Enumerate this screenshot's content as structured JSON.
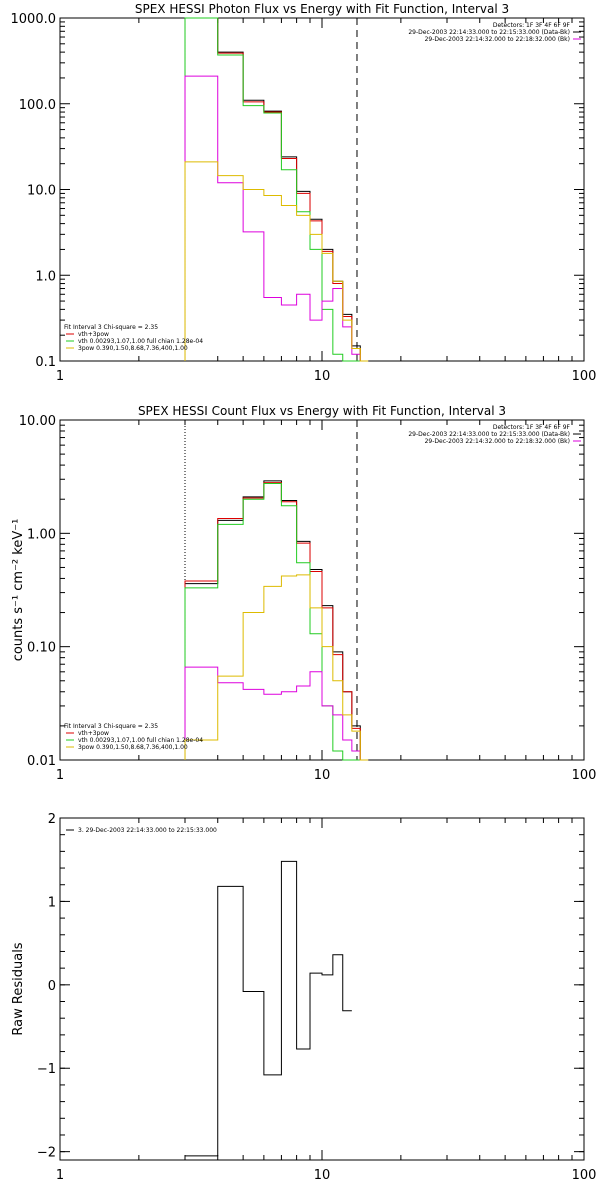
{
  "chart_data": [
    {
      "type": "line",
      "title": "SPEX HESSI Photon Flux vs Energy with Fit Function, Interval 3",
      "xscale": "log",
      "yscale": "log",
      "xlim": [
        1,
        100
      ],
      "ylim": [
        0.1,
        1000
      ],
      "xticks": [
        {
          "v": 1,
          "label": "1"
        },
        {
          "v": 10,
          "label": "10"
        },
        {
          "v": 100,
          "label": "100"
        }
      ],
      "yticks": [
        {
          "v": 1000,
          "label": "1000.0"
        },
        {
          "v": 100,
          "label": "100.0"
        },
        {
          "v": 10,
          "label": "10.0"
        },
        {
          "v": 1,
          "label": "1.0"
        },
        {
          "v": 0.1,
          "label": "0.1"
        }
      ],
      "edges": [
        3.0,
        4.0,
        5.0,
        6.0,
        7.0,
        8.0,
        9.0,
        10.0,
        11.0,
        12.0,
        13.0,
        14.0,
        15.0
      ],
      "vlines": [
        {
          "x": 3.0,
          "style": "dotted",
          "color": "#000000"
        },
        {
          "x": 13.6,
          "style": "dashed",
          "color": "#000000"
        }
      ],
      "series": [
        {
          "color": "#000000",
          "values": [
            1000,
            400,
            110,
            82,
            24,
            9.5,
            4.5,
            2.0,
            0.85,
            0.35,
            0.15,
            0.1
          ]
        },
        {
          "color": "#dd0000",
          "values": [
            1000,
            390,
            105,
            80,
            23,
            9.0,
            4.3,
            1.9,
            0.8,
            0.33,
            0.14,
            0.1
          ]
        },
        {
          "color": "#22cc22",
          "values": [
            1000,
            370,
            95,
            78,
            17,
            5.5,
            2.0,
            0.4,
            0.12,
            0.1,
            0.1,
            0.1
          ]
        },
        {
          "color": "#dd00dd",
          "values": [
            210,
            12,
            3.2,
            0.55,
            0.45,
            0.6,
            0.3,
            0.5,
            0.7,
            0.25,
            0.12,
            0.1
          ]
        },
        {
          "color": "#ddbb00",
          "values": [
            21,
            14.5,
            10.0,
            8.5,
            6.5,
            5.0,
            3.0,
            1.8,
            0.85,
            0.3,
            0.14,
            0.1
          ]
        }
      ],
      "info_lines": [
        {
          "text": "Detectors: 1F 3F 4F 6F 9F",
          "color": ""
        },
        {
          "text": "29-Dec-2003 22:14:33.000 to 22:15:33.000 (Data-Bk)",
          "color": "#000000"
        },
        {
          "text": "29-Dec-2003 22:14:32.000 to 22:18:32.000 (Bk)",
          "color": "#dd00dd"
        }
      ],
      "legend_title": "Fit Interval 3   Chi-square = 2.35",
      "legend": [
        {
          "text": "vth+3pow",
          "color": "#dd0000"
        },
        {
          "text": "vth 0.00293,1.07,1.00  full chian 1.28e-04",
          "color": "#22cc22"
        },
        {
          "text": "3pow 0.390,1.50,8.68,7.36,400,1.00",
          "color": "#ddbb00"
        }
      ]
    },
    {
      "type": "line",
      "title": "SPEX HESSI Count Flux vs Energy with Fit Function, Interval 3",
      "ylabel": "counts s⁻¹ cm⁻² keV⁻¹",
      "xscale": "log",
      "yscale": "log",
      "xlim": [
        1,
        100
      ],
      "ylim": [
        0.01,
        10
      ],
      "xticks": [
        {
          "v": 1,
          "label": "1"
        },
        {
          "v": 10,
          "label": "10"
        },
        {
          "v": 100,
          "label": "100"
        }
      ],
      "yticks": [
        {
          "v": 10,
          "label": "10.00"
        },
        {
          "v": 1,
          "label": "1.00"
        },
        {
          "v": 0.1,
          "label": "0.10"
        },
        {
          "v": 0.01,
          "label": "0.01"
        }
      ],
      "edges": [
        3.0,
        4.0,
        5.0,
        6.0,
        7.0,
        8.0,
        9.0,
        10.0,
        11.0,
        12.0,
        13.0,
        14.0,
        15.0
      ],
      "vlines": [
        {
          "x": 3.0,
          "style": "dotted",
          "color": "#000000"
        },
        {
          "x": 13.6,
          "style": "dashed",
          "color": "#000000"
        }
      ],
      "series": [
        {
          "color": "#000000",
          "values": [
            0.36,
            1.3,
            2.1,
            2.9,
            1.95,
            0.85,
            0.48,
            0.23,
            0.09,
            0.04,
            0.02,
            0.01
          ]
        },
        {
          "color": "#dd0000",
          "values": [
            0.38,
            1.35,
            2.05,
            2.8,
            1.9,
            0.82,
            0.46,
            0.22,
            0.085,
            0.04,
            0.019,
            0.01
          ]
        },
        {
          "color": "#22cc22",
          "values": [
            0.33,
            1.2,
            2.0,
            2.75,
            1.75,
            0.55,
            0.13,
            0.03,
            0.012,
            0.01,
            0.01,
            0.01
          ]
        },
        {
          "color": "#dd00dd",
          "values": [
            0.066,
            0.048,
            0.042,
            0.038,
            0.04,
            0.045,
            0.06,
            0.03,
            0.025,
            0.015,
            0.012,
            0.01
          ]
        },
        {
          "color": "#ddbb00",
          "values": [
            0.015,
            0.055,
            0.2,
            0.34,
            0.42,
            0.43,
            0.22,
            0.1,
            0.05,
            0.025,
            0.018,
            0.01
          ]
        }
      ],
      "info_lines": [
        {
          "text": "Detectors: 1F 3F 4F 6F 9F",
          "color": ""
        },
        {
          "text": "29-Dec-2003 22:14:33.000 to 22:15:33.000 (Data-Bk)",
          "color": "#000000"
        },
        {
          "text": "29-Dec-2003 22:14:32.000 to 22:18:32.000 (Bk)",
          "color": "#dd00dd"
        }
      ],
      "legend_title": "Fit Interval 3   Chi-square = 2.35",
      "legend": [
        {
          "text": "vth+3pow",
          "color": "#dd0000"
        },
        {
          "text": "vth 0.00293,1.07,1.00  full chian 1.28e-04",
          "color": "#22cc22"
        },
        {
          "text": "3pow 0.390,1.50,8.68,7.36,400,1.00",
          "color": "#ddbb00"
        }
      ]
    },
    {
      "type": "line",
      "title": "",
      "ylabel": "Raw Residuals",
      "xscale": "log",
      "yscale": "linear",
      "xlim": [
        1,
        100
      ],
      "ylim": [
        -2.1,
        2
      ],
      "xticks": [
        {
          "v": 1,
          "label": "1"
        },
        {
          "v": 10,
          "label": "10"
        },
        {
          "v": 100,
          "label": "100"
        }
      ],
      "yticks": [
        {
          "v": 2,
          "label": "2"
        },
        {
          "v": 1,
          "label": "1"
        },
        {
          "v": 0,
          "label": "0"
        },
        {
          "v": -1,
          "label": "−1"
        },
        {
          "v": -2,
          "label": "−2"
        }
      ],
      "edges": [
        3.0,
        4.0,
        5.0,
        6.0,
        7.0,
        8.0,
        9.0,
        10.0,
        11.0,
        12.0,
        13.0
      ],
      "vlines": [],
      "series": [
        {
          "color": "#000000",
          "values": [
            -2.05,
            1.18,
            -0.08,
            -1.08,
            1.48,
            -0.77,
            0.14,
            0.12,
            0.36,
            -0.31
          ]
        }
      ],
      "info_lines": [],
      "legend_title": "",
      "legend": [
        {
          "text": "3. 29-Dec-2003 22:14:33.000 to 22:15:33.000",
          "color": "#000000"
        }
      ]
    }
  ]
}
